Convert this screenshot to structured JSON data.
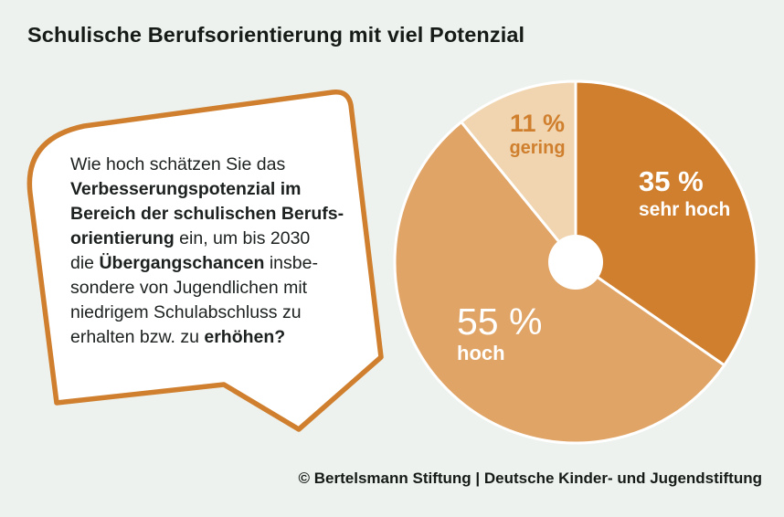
{
  "title": "Schulische Berufsorientierung mit viel Potenzial",
  "bubble": {
    "question_plain": "Wie hoch schätzen Sie das Verbesserungspotenzial im Bereich der schulischen Berufsorientierung ein, um bis 2030 die Übergangschancen insbesondere von Jugendlichen mit niedrigem Schulabschluss zu erhalten bzw. zu erhöhen?",
    "question_lines": [
      [
        {
          "t": "Wie hoch schätzen Sie das",
          "b": false
        }
      ],
      [
        {
          "t": "Verbesserungspotenzial im",
          "b": true
        }
      ],
      [
        {
          "t": "Bereich der schulischen Berufs-",
          "b": true
        }
      ],
      [
        {
          "t": "orientierung",
          "b": true
        },
        {
          "t": " ein, um bis 2030",
          "b": false
        }
      ],
      [
        {
          "t": "die ",
          "b": false
        },
        {
          "t": "Übergangschancen",
          "b": true
        },
        {
          "t": " insbe-",
          "b": false
        }
      ],
      [
        {
          "t": "sondere von Jugendlichen mit",
          "b": false
        }
      ],
      [
        {
          "t": "niedrigem Schulabschluss zu",
          "b": false
        }
      ],
      [
        {
          "t": "erhalten bzw. zu ",
          "b": false
        },
        {
          "t": "erhöhen?",
          "b": true
        }
      ]
    ],
    "border_color": "#cf7f2e",
    "fill_color": "#ffffff"
  },
  "chart_data": {
    "type": "pie",
    "title": "Schulische Berufsorientierung mit viel Potenzial",
    "categories": [
      "sehr hoch",
      "hoch",
      "gering"
    ],
    "values": [
      35,
      55,
      11
    ],
    "unit": "%",
    "start_angle_deg": 0,
    "direction": "clockwise",
    "donut_hole": true,
    "donut_hole_radius_ratio": 0.15,
    "divider_color": "#ffffff",
    "legend_position": "on-slices",
    "slices": [
      {
        "label": "sehr hoch",
        "value": 35,
        "display": "35 %",
        "color": "#cf7f2d",
        "text_color": "#ffffff"
      },
      {
        "label": "hoch",
        "value": 55,
        "display": "55 %",
        "color": "#e0a466",
        "text_color": "#ffffff"
      },
      {
        "label": "gering",
        "value": 11,
        "display": "11 %",
        "color": "#f0d5b0",
        "text_color": "#cf7f2d"
      }
    ]
  },
  "footer": {
    "credit": "© Bertelsmann Stiftung | Deutsche Kinder- und Jugendstiftung"
  },
  "colors": {
    "background": "#edf2ee",
    "title_text": "#161b18",
    "body_text": "#1c211f",
    "accent_orange_dark": "#cf7f2d",
    "accent_orange_mid": "#e0a466",
    "accent_orange_light": "#f0d5b0",
    "bubble_border": "#cf7f2e"
  }
}
